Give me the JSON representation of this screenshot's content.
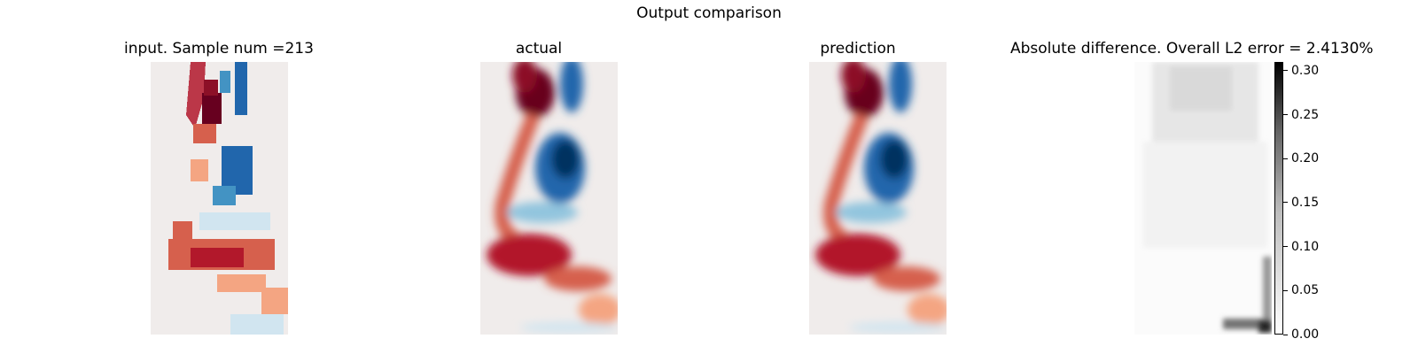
{
  "suptitle": "Output comparison",
  "panels": [
    {
      "title": "input. Sample num =213",
      "kind": "field",
      "pixelated": true
    },
    {
      "title": "actual",
      "kind": "field",
      "pixelated": false
    },
    {
      "title": "prediction",
      "kind": "field",
      "pixelated": false
    },
    {
      "title": "Absolute difference. Overall L2 error = 2.4130%",
      "kind": "error"
    }
  ],
  "colorbar": {
    "ticks": [
      "0.00",
      "0.05",
      "0.10",
      "0.15",
      "0.20",
      "0.25",
      "0.30"
    ],
    "values": [
      0.0,
      0.05,
      0.1,
      0.15,
      0.2,
      0.25,
      0.3
    ],
    "range": [
      0.0,
      0.31
    ],
    "colormap": "Greys"
  },
  "colors": {
    "positive_dark": "#67001f",
    "positive": "#b2182b",
    "neutral": "#f0eceb",
    "negative": "#2166ac",
    "negative_dark": "#053061"
  },
  "chart_data": [
    {
      "type": "heatmap",
      "title": "input. Sample num =213",
      "colormap": "diverging red-blue"
    },
    {
      "type": "heatmap",
      "title": "actual",
      "colormap": "diverging red-blue"
    },
    {
      "type": "heatmap",
      "title": "prediction",
      "colormap": "diverging red-blue"
    },
    {
      "type": "heatmap",
      "title": "Absolute difference. Overall L2 error = 2.4130%",
      "colormap": "Greys",
      "colorbar_range": [
        0.0,
        0.31
      ],
      "colorbar_ticks": [
        0.0,
        0.05,
        0.1,
        0.15,
        0.2,
        0.25,
        0.3
      ]
    }
  ]
}
